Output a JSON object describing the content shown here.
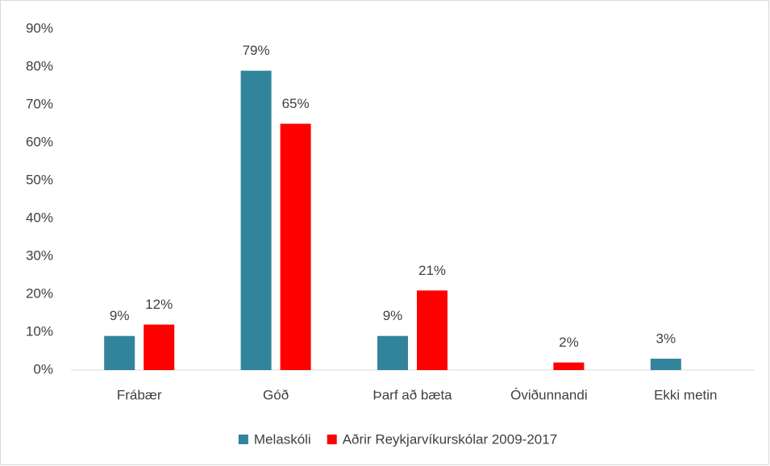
{
  "chart_data": {
    "type": "bar",
    "categories": [
      "Frábær",
      "Góð",
      "Þarf að bæta",
      "Óviðunnandi",
      "Ekki metin"
    ],
    "series": [
      {
        "name": "Melaskóli",
        "color": "#31849b",
        "values": [
          9,
          79,
          9,
          null,
          3
        ],
        "value_labels": [
          "9%",
          "79%",
          "9%",
          null,
          "3%"
        ]
      },
      {
        "name": "Aðrir Reykjarvíkurskólar 2009-2017",
        "color": "#ff0000",
        "values": [
          12,
          65,
          21,
          2,
          null
        ],
        "value_labels": [
          "12%",
          "65%",
          "21%",
          "2%",
          null
        ]
      }
    ],
    "ylim": [
      0,
      90
    ],
    "yticks": [
      {
        "value": 0,
        "label": "0%"
      },
      {
        "value": 10,
        "label": "10%"
      },
      {
        "value": 20,
        "label": "20%"
      },
      {
        "value": 30,
        "label": "30%"
      },
      {
        "value": 40,
        "label": "40%"
      },
      {
        "value": 50,
        "label": "50%"
      },
      {
        "value": 60,
        "label": "60%"
      },
      {
        "value": 70,
        "label": "70%"
      },
      {
        "value": 80,
        "label": "80%"
      },
      {
        "value": 90,
        "label": "90%"
      }
    ],
    "grid": false,
    "legend": "bottom"
  }
}
